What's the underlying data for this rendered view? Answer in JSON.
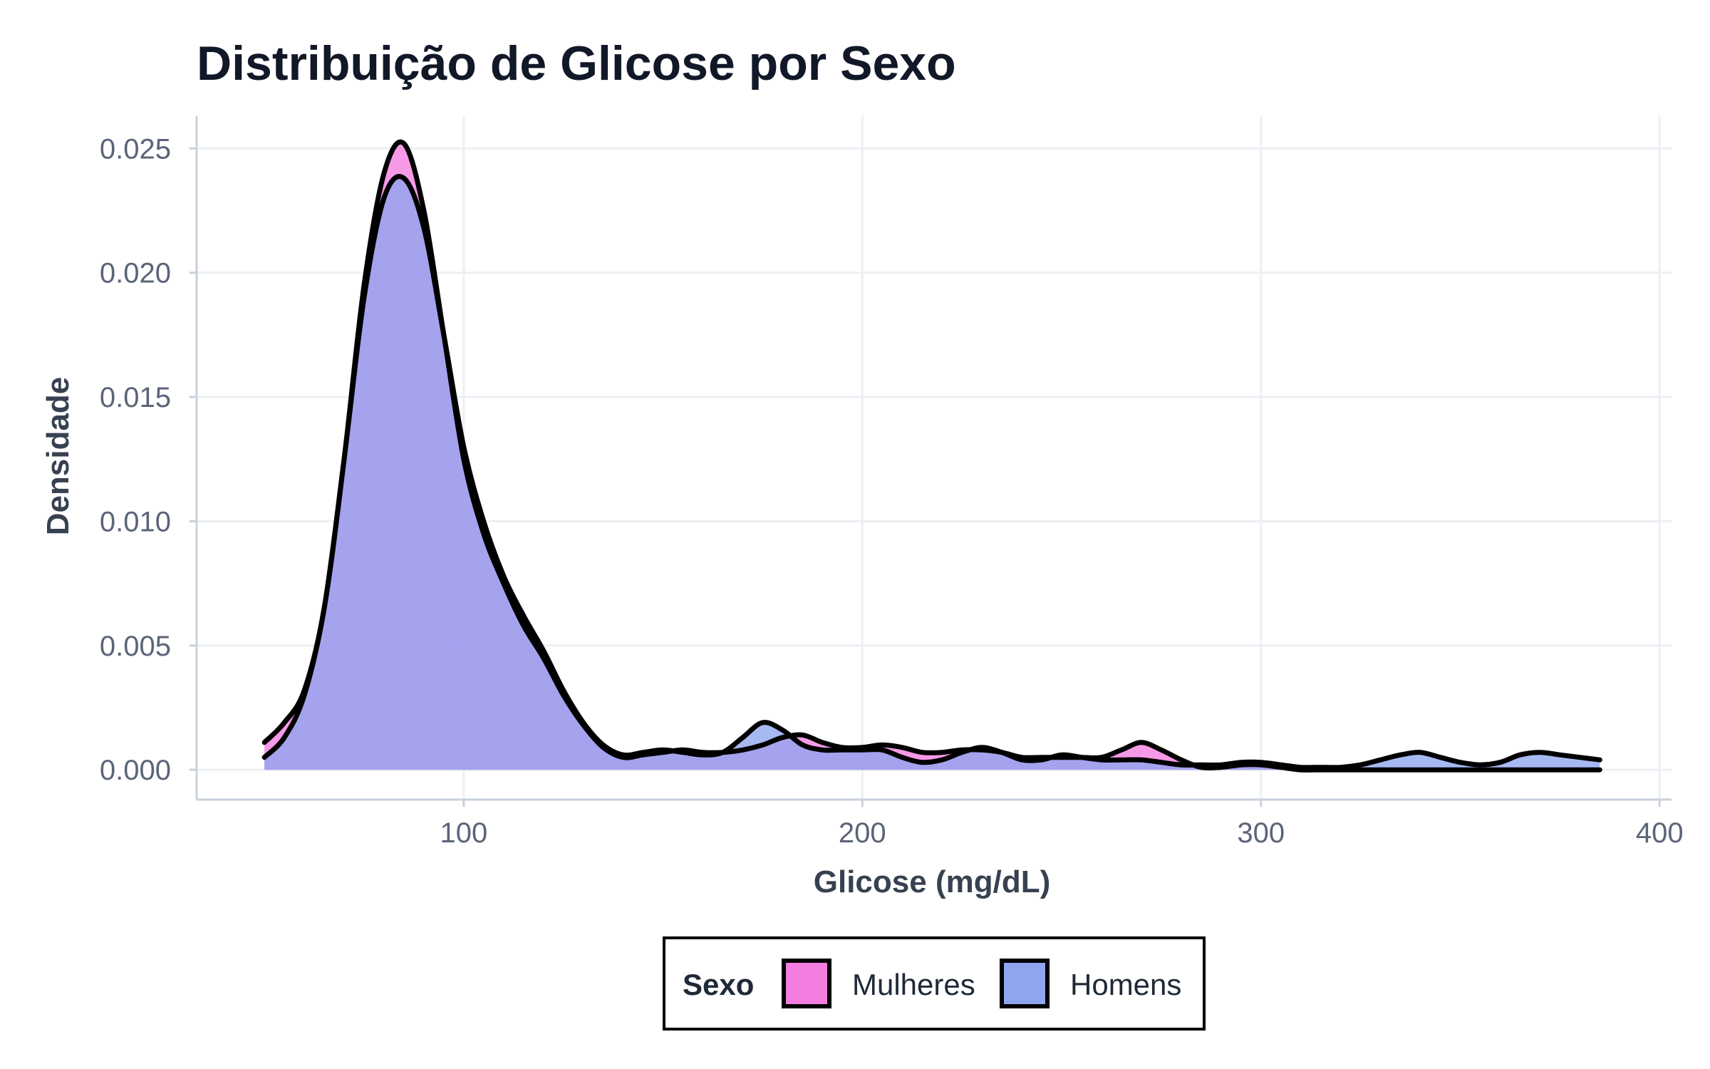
{
  "chart_data": {
    "type": "area",
    "title": "Distribuição de Glicose por Sexo",
    "xlabel": "Glicose (mg/dL)",
    "ylabel": "Densidade",
    "xlim": [
      33,
      403
    ],
    "ylim": [
      -0.0012,
      0.0263
    ],
    "x_ticks": [
      100,
      200,
      300,
      400
    ],
    "x_tick_labels": [
      "100",
      "200",
      "300",
      "400"
    ],
    "y_ticks": [
      0,
      0.005,
      0.01,
      0.015,
      0.02,
      0.025
    ],
    "y_tick_labels": [
      "0.000",
      "0.005",
      "0.010",
      "0.015",
      "0.020",
      "0.025"
    ],
    "grid": true,
    "legend": {
      "title": "Sexo",
      "placement": "bottom",
      "entries": [
        "Mulheres",
        "Homens"
      ]
    },
    "series": [
      {
        "name": "Mulheres",
        "color": "#f47ee0",
        "line_color": "#000000",
        "x": [
          50,
          55,
          60,
          65,
          70,
          75,
          80,
          85,
          90,
          95,
          100,
          105,
          110,
          115,
          120,
          125,
          130,
          135,
          140,
          145,
          150,
          155,
          160,
          165,
          170,
          175,
          180,
          185,
          190,
          195,
          200,
          205,
          210,
          215,
          220,
          225,
          230,
          235,
          240,
          245,
          250,
          255,
          260,
          265,
          270,
          275,
          280,
          285,
          290,
          295,
          300,
          305,
          310,
          315,
          320,
          325,
          330,
          335,
          340,
          345,
          350,
          355,
          360,
          365,
          370,
          375,
          380,
          385
        ],
        "y": [
          0.0011,
          0.0019,
          0.0032,
          0.0065,
          0.0125,
          0.0195,
          0.024,
          0.0252,
          0.0225,
          0.0175,
          0.0125,
          0.0095,
          0.0075,
          0.0058,
          0.0045,
          0.003,
          0.0018,
          0.0009,
          0.0005,
          0.0006,
          0.0007,
          0.0008,
          0.0007,
          0.0007,
          0.0008,
          0.001,
          0.0013,
          0.0014,
          0.0011,
          0.0009,
          0.0009,
          0.001,
          0.0009,
          0.0007,
          0.0007,
          0.0008,
          0.0008,
          0.0007,
          0.0005,
          0.0005,
          0.0005,
          0.0005,
          0.0005,
          0.0008,
          0.0011,
          0.0008,
          0.0004,
          0.0001,
          0.0001,
          0.0002,
          0.0002,
          0.0001,
          0.0,
          0.0,
          0.0,
          0.0,
          0.0,
          0.0,
          0.0,
          0.0,
          0.0,
          0.0,
          0.0,
          0.0,
          0.0,
          0.0,
          0.0,
          0.0
        ]
      },
      {
        "name": "Homens",
        "color": "#8ea5f0",
        "line_color": "#000000",
        "x": [
          50,
          55,
          60,
          65,
          70,
          75,
          80,
          85,
          90,
          95,
          100,
          105,
          110,
          115,
          120,
          125,
          130,
          135,
          140,
          145,
          150,
          155,
          160,
          165,
          170,
          175,
          180,
          185,
          190,
          195,
          200,
          205,
          210,
          215,
          220,
          225,
          230,
          235,
          240,
          245,
          250,
          255,
          260,
          265,
          270,
          275,
          280,
          285,
          290,
          295,
          300,
          305,
          310,
          315,
          320,
          325,
          330,
          335,
          340,
          345,
          350,
          355,
          360,
          365,
          370,
          375,
          380,
          385
        ],
        "y": [
          0.0005,
          0.0013,
          0.003,
          0.0065,
          0.0125,
          0.019,
          0.023,
          0.0238,
          0.0218,
          0.0175,
          0.013,
          0.01,
          0.0078,
          0.0062,
          0.0048,
          0.0032,
          0.0019,
          0.001,
          0.0006,
          0.0007,
          0.0008,
          0.0007,
          0.0006,
          0.0007,
          0.0013,
          0.0019,
          0.0016,
          0.001,
          0.0008,
          0.0008,
          0.0008,
          0.0008,
          0.0005,
          0.0003,
          0.0004,
          0.0007,
          0.0009,
          0.0007,
          0.0004,
          0.0004,
          0.0006,
          0.0005,
          0.0004,
          0.0004,
          0.0004,
          0.0003,
          0.0002,
          0.0002,
          0.0002,
          0.0003,
          0.0003,
          0.0002,
          0.0001,
          0.0001,
          0.0001,
          0.0002,
          0.0004,
          0.0006,
          0.0007,
          0.0005,
          0.0003,
          0.0002,
          0.0003,
          0.0006,
          0.0007,
          0.0006,
          0.0005,
          0.0004
        ]
      }
    ]
  }
}
